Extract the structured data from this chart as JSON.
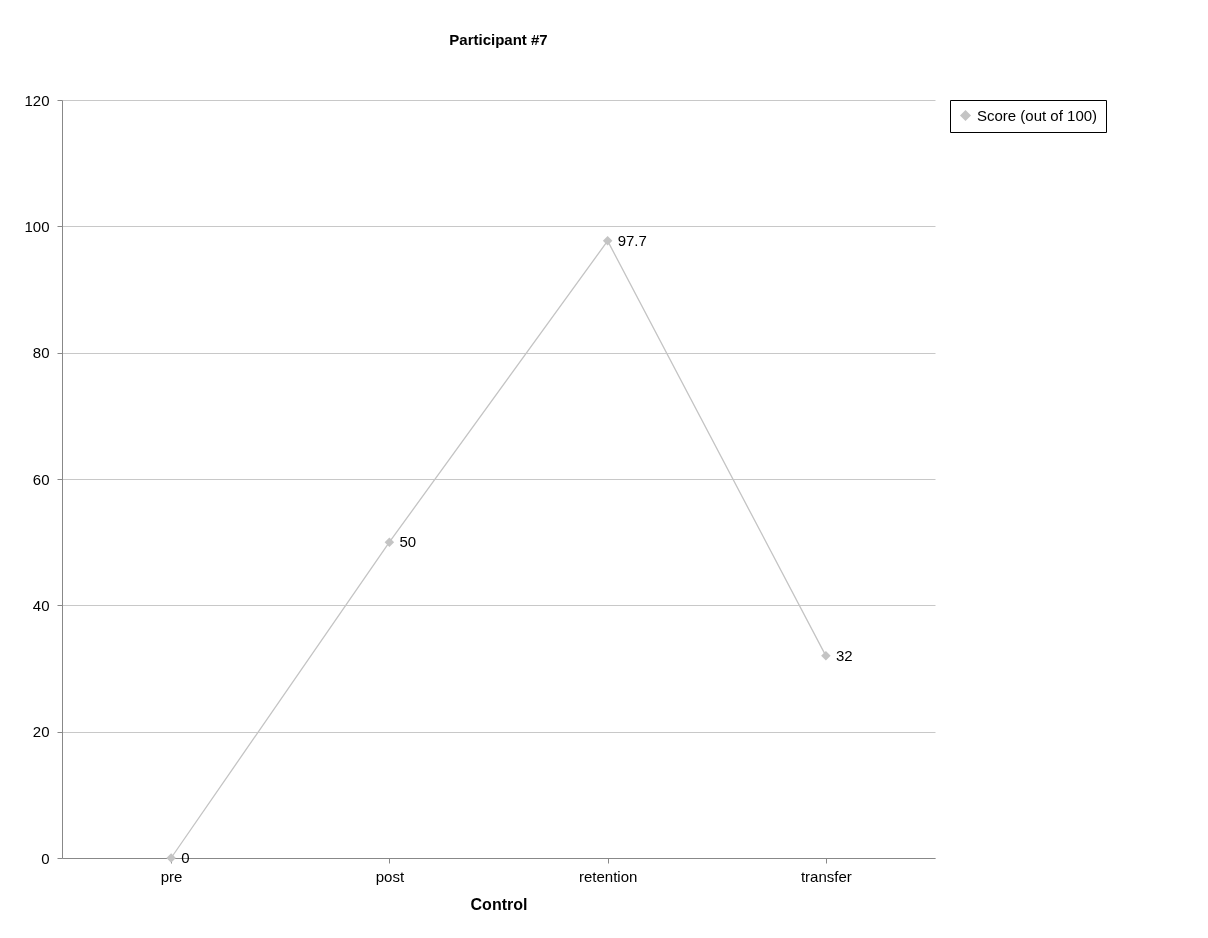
{
  "chart_data": {
    "type": "line",
    "title": "Participant #7",
    "xlabel": "Control",
    "categories": [
      "pre",
      "post",
      "retention",
      "transfer"
    ],
    "series": [
      {
        "name": "Score (out of 100)",
        "color": "#c4c4c4",
        "values": [
          0,
          50,
          97.7,
          32
        ]
      }
    ],
    "ylim": [
      0,
      120
    ],
    "yticks": [
      0,
      20,
      40,
      60,
      80,
      100,
      120
    ],
    "grid": "y",
    "legend": "right",
    "marker": "diamond",
    "data_labels": true
  }
}
